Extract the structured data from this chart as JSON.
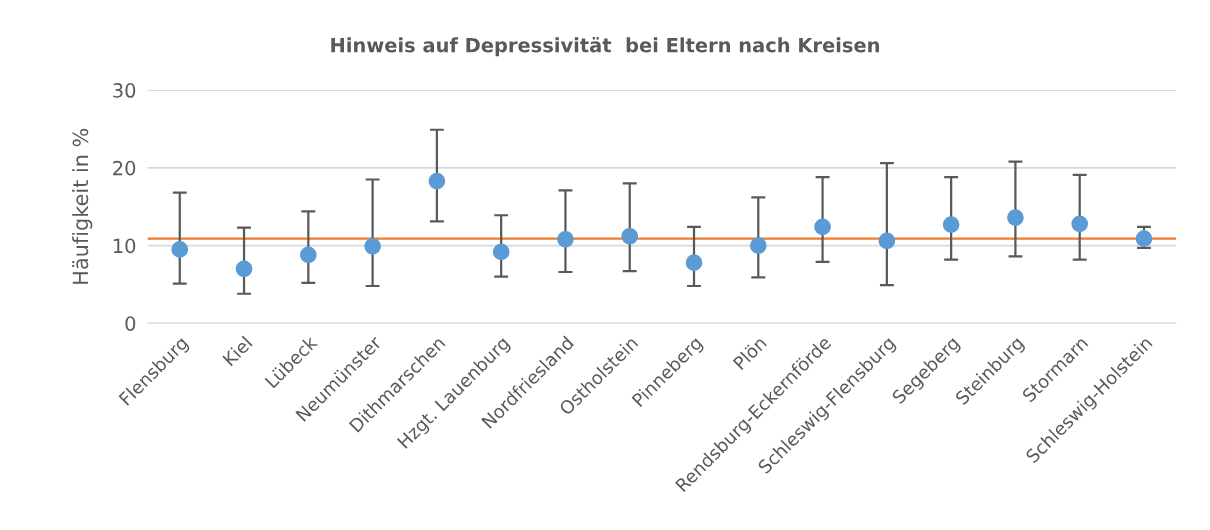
{
  "chart_data": {
    "type": "scatter",
    "title": "Hinweis auf Depressivität  bei Eltern nach Kreisen",
    "ylabel": "Häufigkeit in %",
    "categories": [
      "Flensburg",
      "Kiel",
      "Lübeck",
      "Neumünster",
      "Dithmarschen",
      "Hzgt. Lauenburg",
      "Nordfriesland",
      "Ostholstein",
      "Pinneberg",
      "Plön",
      "Rendsburg-Eckernförde",
      "Schleswig-Flensburg",
      "Segeberg",
      "Steinburg",
      "Stormarn",
      "Schleswig-Holstein"
    ],
    "series": [
      {
        "color": "#5b9bd5",
        "values": [
          9.5,
          7.0,
          8.8,
          9.9,
          18.3,
          9.2,
          10.8,
          11.2,
          7.8,
          10.0,
          12.4,
          10.6,
          12.7,
          13.6,
          12.8,
          10.9
        ],
        "errors": [
          [
            5.1,
            16.8
          ],
          [
            3.8,
            12.3
          ],
          [
            5.2,
            14.4
          ],
          [
            4.8,
            18.5
          ],
          [
            13.1,
            24.9
          ],
          [
            6.0,
            13.9
          ],
          [
            6.6,
            17.1
          ],
          [
            6.7,
            18.0
          ],
          [
            4.8,
            12.4
          ],
          [
            5.9,
            16.2
          ],
          [
            7.9,
            18.8
          ],
          [
            4.9,
            20.6
          ],
          [
            8.2,
            18.8
          ],
          [
            8.6,
            20.8
          ],
          [
            8.2,
            19.1
          ],
          [
            9.7,
            12.4
          ]
        ]
      }
    ],
    "ref_lines": [
      {
        "axis": "y",
        "value": 10.9,
        "color": "#ed7d31"
      }
    ],
    "ylim": [
      0,
      30
    ],
    "yticks": [
      0,
      10,
      20,
      30
    ],
    "grid": "y",
    "marker": "circle",
    "legend": false
  }
}
